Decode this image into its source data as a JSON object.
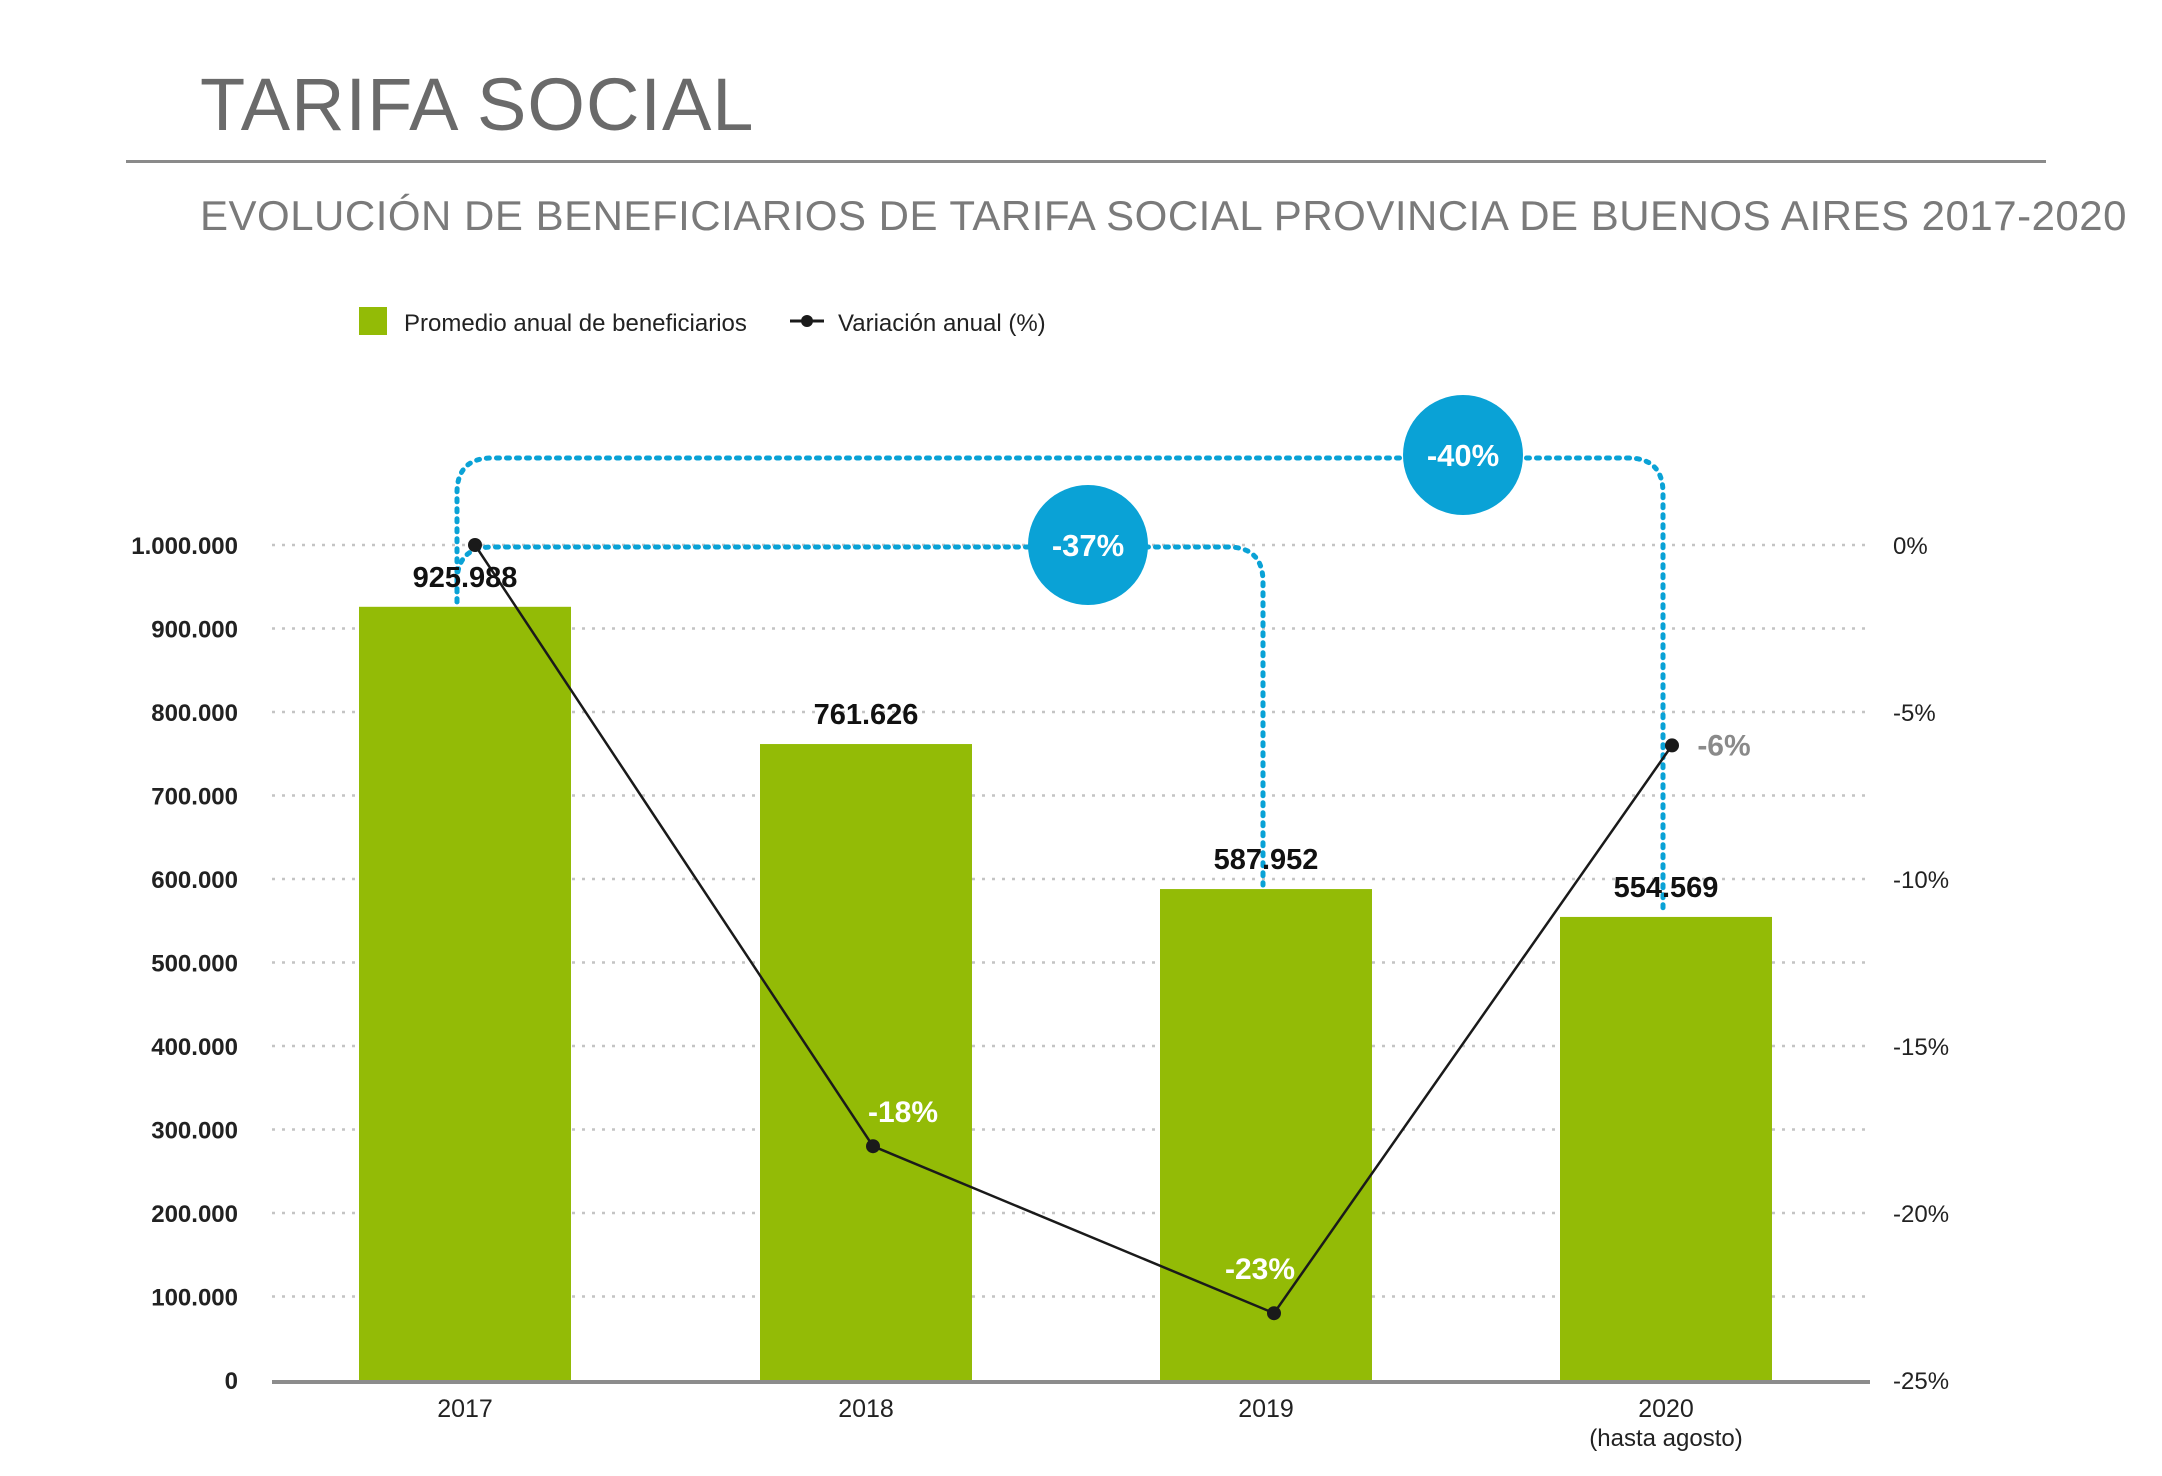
{
  "title": "TARIFA SOCIAL",
  "subtitle": "EVOLUCIÓN DE BENEFICIARIOS DE TARIFA SOCIAL PROVINCIA DE BUENOS AIRES 2017-2020",
  "chart_data": {
    "type": "bar",
    "categories": [
      "2017",
      "2018",
      "2019",
      "2020"
    ],
    "category_sublabels": [
      "",
      "",
      "",
      "(hasta agosto)"
    ],
    "series": [
      {
        "name": "Promedio anual de beneficiarios",
        "type": "bar",
        "axis": "left",
        "color": "#93bb06",
        "values": [
          925988,
          761626,
          587952,
          554569
        ],
        "labels": [
          "925.988",
          "761.626",
          "587.952",
          "554.569"
        ]
      },
      {
        "name": "Variación anual (%)",
        "type": "line",
        "axis": "right",
        "color": "#1a1a1a",
        "values": [
          0,
          -18,
          -23,
          -6
        ],
        "labels": [
          "",
          "-18%",
          "-23%",
          "-6%"
        ]
      }
    ],
    "ylim": [
      0,
      1000000
    ],
    "y_ticks": [
      "0",
      "100.000",
      "200.000",
      "300.000",
      "400.000",
      "500.000",
      "600.000",
      "700.000",
      "800.000",
      "900.000",
      "1.000.000"
    ],
    "y2lim": [
      -25,
      0
    ],
    "y2_ticks": [
      "0%",
      "-5%",
      "-10%",
      "-15%",
      "-20%",
      "-25%"
    ],
    "grid": true,
    "legend": "top-left",
    "annotations": [
      {
        "label": "-37%",
        "from": "2017",
        "to": "2019",
        "color": "#0aa2d6"
      },
      {
        "label": "-40%",
        "from": "2017",
        "to": "2020",
        "color": "#0aa2d6"
      }
    ]
  }
}
